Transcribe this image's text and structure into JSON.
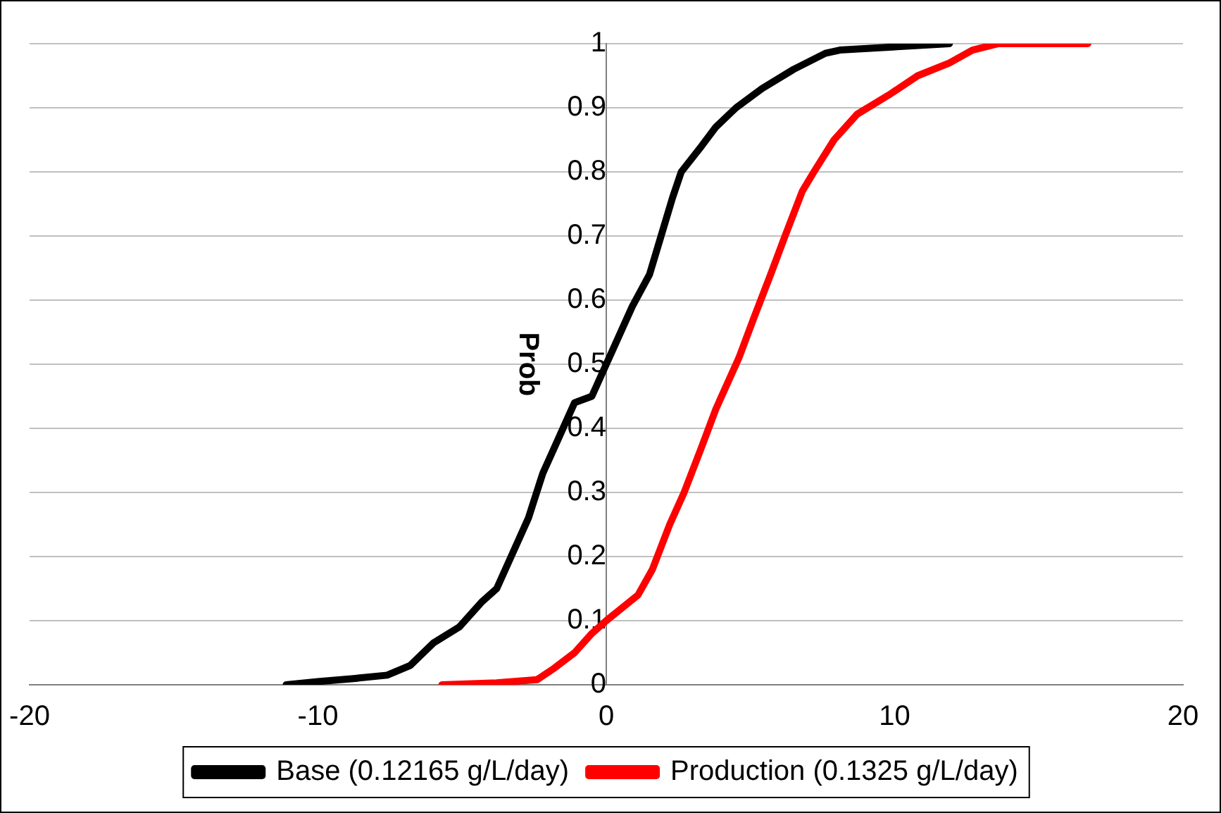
{
  "chart_data": {
    "type": "line",
    "ylabel": "Prob",
    "xlim": [
      -20,
      20
    ],
    "xticks": [
      -20,
      -10,
      0,
      10,
      20
    ],
    "ylim": [
      0,
      1
    ],
    "yticks": [
      0,
      0.1,
      0.2,
      0.3,
      0.4,
      0.5,
      0.6,
      0.7,
      0.8,
      0.9,
      1
    ],
    "grid": "y",
    "legend": "bottom",
    "marker": "none",
    "line_style": "solid",
    "series": [
      {
        "name": "Base (0.12165 g/L/day)",
        "color": "#000000",
        "x": [
          -11.1,
          -10.0,
          -8.7,
          -7.6,
          -6.8,
          -6.0,
          -5.1,
          -4.3,
          -3.8,
          -3.3,
          -2.7,
          -2.2,
          -1.6,
          -1.1,
          -0.5,
          0.0,
          0.9,
          1.5,
          1.9,
          2.3,
          2.6,
          3.3,
          3.8,
          4.5,
          5.4,
          6.5,
          7.6,
          8.1,
          11.9
        ],
        "values": [
          0,
          0.005,
          0.01,
          0.015,
          0.03,
          0.065,
          0.09,
          0.13,
          0.15,
          0.2,
          0.26,
          0.33,
          0.39,
          0.44,
          0.45,
          0.5,
          0.59,
          0.64,
          0.7,
          0.76,
          0.8,
          0.84,
          0.87,
          0.9,
          0.93,
          0.96,
          0.985,
          0.99,
          1
        ]
      },
      {
        "name": "Production (0.1325 g/L/day)",
        "color": "#ff0000",
        "x": [
          -5.7,
          -3.8,
          -2.4,
          -1.8,
          -1.1,
          -0.5,
          0.0,
          1.1,
          1.6,
          2.2,
          2.7,
          3.3,
          3.8,
          4.6,
          5.1,
          5.7,
          6.2,
          6.8,
          7.2,
          7.9,
          8.7,
          9.8,
          10.8,
          11.9,
          12.7,
          13.6,
          16.7
        ],
        "values": [
          0,
          0.003,
          0.008,
          0.026,
          0.05,
          0.08,
          0.1,
          0.14,
          0.18,
          0.25,
          0.3,
          0.37,
          0.43,
          0.51,
          0.57,
          0.64,
          0.7,
          0.77,
          0.8,
          0.85,
          0.89,
          0.92,
          0.95,
          0.97,
          0.99,
          1,
          1
        ]
      }
    ]
  }
}
